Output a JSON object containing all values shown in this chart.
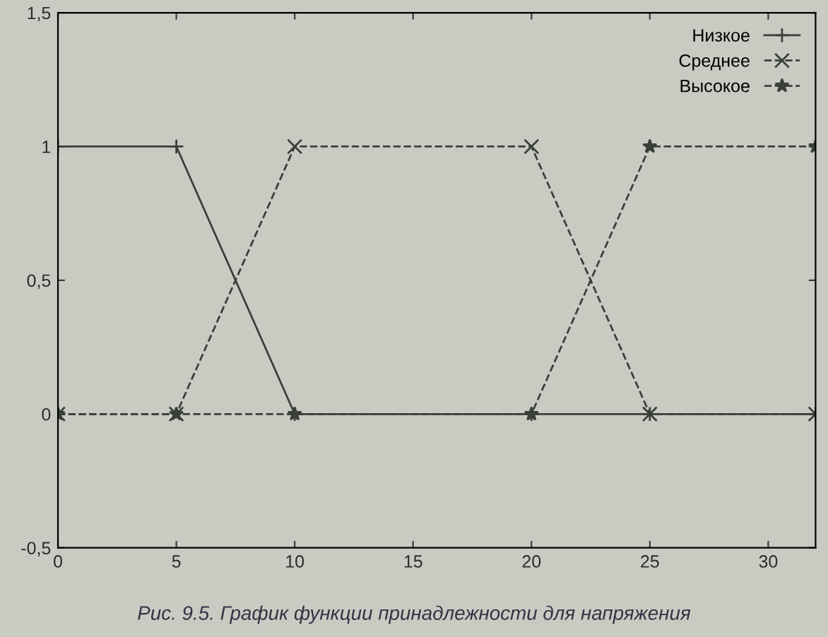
{
  "chart_data": {
    "type": "line",
    "series": [
      {
        "name": "Низкое",
        "color": "#3a4038",
        "x": [
          0,
          5,
          10,
          20,
          25,
          32
        ],
        "values": [
          1,
          1,
          0,
          0,
          0,
          0
        ],
        "marker": "cross",
        "line_style": "solid"
      },
      {
        "name": "Среднее",
        "color": "#3a4038",
        "x": [
          0,
          5,
          10,
          20,
          25,
          32
        ],
        "values": [
          0,
          0,
          1,
          1,
          0,
          0
        ],
        "marker": "x",
        "line_style": "dashed"
      },
      {
        "name": "Высокое",
        "color": "#3a4038",
        "x": [
          0,
          5,
          10,
          20,
          25,
          32
        ],
        "values": [
          0,
          0,
          0,
          0,
          1,
          1
        ],
        "marker": "star",
        "line_style": "dashed"
      }
    ],
    "xlim": [
      0,
      32
    ],
    "xticks": [
      0,
      5,
      10,
      15,
      20,
      25,
      30
    ],
    "ylim": [
      -0.5,
      1.5
    ],
    "yticks": [
      {
        "value": -0.5,
        "label": "-0,5"
      },
      0,
      {
        "value": 0.5,
        "label": "0,5"
      },
      1,
      {
        "value": 1.5,
        "label": "1,5"
      }
    ],
    "legend": "top right",
    "grid": false,
    "annotations": [
      "Рис. 9.5. График функции принадлежности для напряжения"
    ]
  }
}
